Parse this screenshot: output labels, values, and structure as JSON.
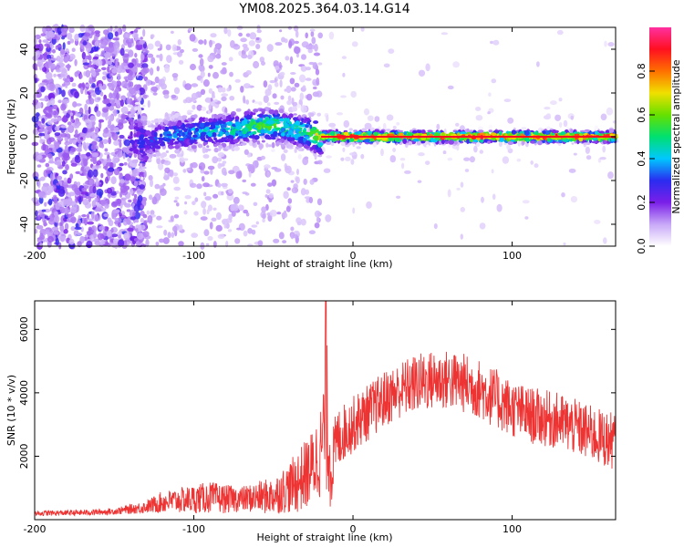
{
  "title": "YM08.2025.364.03.14.G14",
  "chart_data": [
    {
      "type": "heatmap",
      "title": "YM08.2025.364.03.14.G14",
      "xlabel": "Height of straight line (km)",
      "ylabel": "Frequency (Hz)",
      "xlim": [
        -200,
        165
      ],
      "ylim": [
        -50,
        50
      ],
      "xticks": [
        -200,
        -100,
        0,
        100
      ],
      "yticks": [
        -40,
        -20,
        0,
        20,
        40
      ],
      "xtick_labels": [
        "-200",
        "-100",
        "0",
        "100"
      ],
      "ytick_labels": [
        "-40",
        "-20",
        "0",
        "20",
        "40"
      ],
      "ridge": {
        "x": [
          -200,
          -140,
          -130,
          -120,
          -100,
          -80,
          -60,
          -50,
          -40,
          -30,
          -25,
          -20,
          -10,
          0,
          50,
          100,
          165
        ],
        "y": [
          0,
          0,
          -3,
          0,
          2,
          3,
          5,
          5,
          4,
          2,
          1,
          0,
          0,
          0,
          0,
          0,
          0
        ],
        "amplitude": [
          0.2,
          0.25,
          0.3,
          0.35,
          0.4,
          0.45,
          0.55,
          0.55,
          0.5,
          0.5,
          0.6,
          0.75,
          0.85,
          0.9,
          0.9,
          0.88,
          0.85
        ]
      },
      "colorbar": {
        "label": "Normalized spectral amplitude",
        "range": [
          0,
          1
        ],
        "ticks": [
          0.0,
          0.2,
          0.4,
          0.6,
          0.8
        ],
        "tick_labels": [
          "0.0",
          "0.2",
          "0.4",
          "0.6",
          "0.8"
        ],
        "colors": [
          "#ffffff",
          "#c8a8f8",
          "#7a1fe8",
          "#2a2cf0",
          "#00c8ff",
          "#00e070",
          "#66e000",
          "#f0e000",
          "#ff7000",
          "#ff1020",
          "#ff30a0"
        ]
      }
    },
    {
      "type": "line",
      "xlabel": "Height of straight line (km)",
      "ylabel": "SNR (10 * v/v)",
      "xlim": [
        -200,
        165
      ],
      "ylim": [
        0,
        6900
      ],
      "xticks": [
        -200,
        -100,
        0,
        100
      ],
      "yticks": [
        2000,
        4000,
        6000
      ],
      "xtick_labels": [
        "-200",
        "-100",
        "0",
        "100"
      ],
      "ytick_labels": [
        "2000",
        "4000",
        "6000"
      ],
      "series": [
        {
          "name": "SNR",
          "color": "#ee3333",
          "envelope": {
            "x": [
              -200,
              -170,
              -150,
              -130,
              -120,
              -100,
              -90,
              -80,
              -70,
              -60,
              -50,
              -45,
              -40,
              -35,
              -30,
              -25,
              -20,
              -18,
              -16,
              -14,
              -10,
              -5,
              0,
              10,
              20,
              30,
              40,
              50,
              60,
              70,
              80,
              90,
              100,
              110,
              120,
              130,
              140,
              150,
              160,
              165
            ],
            "mean": [
              200,
              220,
              260,
              400,
              550,
              650,
              700,
              650,
              650,
              700,
              750,
              900,
              1000,
              1200,
              1400,
              1700,
              2200,
              3000,
              3200,
              1500,
              2500,
              2800,
              3000,
              3400,
              3800,
              4100,
              4300,
              4400,
              4400,
              4300,
              4100,
              3800,
              3500,
              3300,
              3200,
              3100,
              2900,
              2700,
              2500,
              2500
            ],
            "spread": [
              80,
              90,
              100,
              200,
              350,
              450,
              500,
              450,
              400,
              500,
              600,
              700,
              800,
              1000,
              1100,
              1200,
              1500,
              2000,
              2500,
              1200,
              1000,
              900,
              900,
              900,
              900,
              900,
              950,
              950,
              950,
              950,
              950,
              950,
              900,
              900,
              900,
              900,
              900,
              900,
              900,
              900
            ]
          },
          "peak": {
            "x": -17,
            "y": 6900
          }
        }
      ]
    }
  ]
}
